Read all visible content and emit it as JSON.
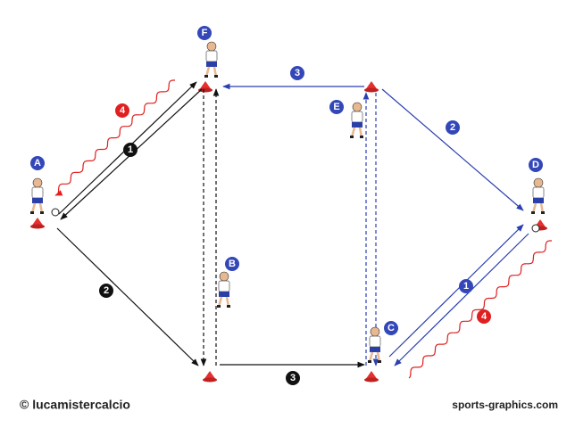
{
  "players": [
    {
      "label": "A"
    },
    {
      "label": "B"
    },
    {
      "label": "C"
    },
    {
      "label": "D"
    },
    {
      "label": "E"
    },
    {
      "label": "F"
    }
  ],
  "steps": {
    "black": [
      {
        "label": 1
      },
      {
        "label": 2
      },
      {
        "label": 3
      }
    ],
    "blue": [
      {
        "label": 1
      },
      {
        "label": 2
      },
      {
        "label": 3
      }
    ],
    "red": [
      {
        "label": 4
      },
      {
        "label": 4
      }
    ]
  },
  "footer": {
    "copyright": "© lucamistercalcio",
    "site": "sports-graphics.com"
  }
}
